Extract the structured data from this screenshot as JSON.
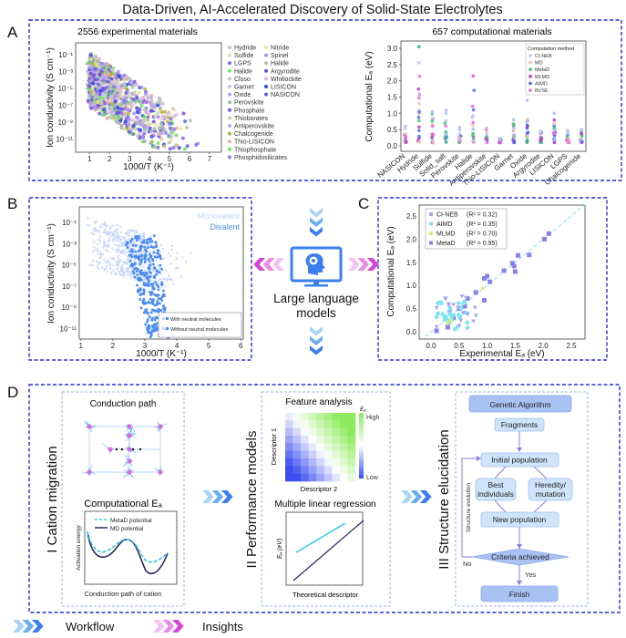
{
  "title": "Data-Driven, AI-Accelerated Discovery of Solid-State Electrolytes",
  "panels": {
    "A": {
      "label": "A",
      "left": {
        "title": "2556 experimental materials",
        "xlabel": "1000/T (K⁻¹)",
        "ylabel": "Ion conductivity (S cm⁻¹)",
        "xticks": [
          "1",
          "2",
          "3",
          "4",
          "5",
          "6",
          "7"
        ],
        "yticks": [
          "10⁻¹",
          "10⁻³",
          "10⁻⁵",
          "10⁻⁷",
          "10⁻⁹",
          "10⁻¹¹"
        ],
        "legend_col1": [
          {
            "name": "Hydride",
            "color": "#b9c9cf"
          },
          {
            "name": "Sulfide",
            "color": "#e6dcb8"
          },
          {
            "name": "LGPS",
            "color": "#8c5ff0"
          },
          {
            "name": "Halide",
            "color": "#6ee85a"
          },
          {
            "name": "Closo",
            "color": "#c6cbc0"
          },
          {
            "name": "Garnet",
            "color": "#d9b8ee"
          },
          {
            "name": "Oxide",
            "color": "#b89af0"
          },
          {
            "name": "Perovskite",
            "color": "#9cbf9c"
          },
          {
            "name": "Phosphate",
            "color": "#7a4ef0"
          },
          {
            "name": "Thioborates",
            "color": "#c8d0b0"
          },
          {
            "name": "Antiperovskite",
            "color": "#b7a0ee"
          },
          {
            "name": "Chalcogenide",
            "color": "#b5b040"
          },
          {
            "name": "Thio-LISICON",
            "color": "#e8b8a0"
          },
          {
            "name": "Thiophosphate",
            "color": "#66e860"
          },
          {
            "name": "Phosphidosilicates",
            "color": "#8c80f0"
          }
        ],
        "legend_col2": [
          {
            "name": "Nitride",
            "color": "#e0e890"
          },
          {
            "name": "Spinel",
            "color": "#a890f0"
          },
          {
            "name": "Halide",
            "color": "#b8c0a8"
          },
          {
            "name": "Argyrodite",
            "color": "#7050e8"
          },
          {
            "name": "Whitlockite",
            "color": "#e0b0ee"
          },
          {
            "name": "LISICON",
            "color": "#2f48e0"
          },
          {
            "name": "NASICON",
            "color": "#5a60e8"
          }
        ]
      },
      "right": {
        "title": "657 computational materials",
        "ylabel": "Computational Eₐ (eV)",
        "yticks": [
          "0.0",
          "0.5",
          "1.0",
          "1.5",
          "2.0",
          "2.5",
          "3.0"
        ],
        "categories": [
          "NASICON",
          "Hydride",
          "Sulfide",
          "Solid_salt",
          "Perovskite",
          "Halide",
          "Antiperovskite",
          "Thio-LISICON",
          "Garnet",
          "Oxide",
          "Argyrodite",
          "LISICON",
          "LGPS",
          "Chalcogenide"
        ],
        "legend_title": "Computation method",
        "legend": [
          {
            "name": "CI-NEB",
            "color": "#b8c4f4",
            "marker": "circle"
          },
          {
            "name": "MD",
            "color": "#f4c0a8",
            "marker": "square"
          },
          {
            "name": "MetaD",
            "color": "#3cc878",
            "marker": "triangle"
          },
          {
            "name": "MLMD",
            "color": "#c030d8",
            "marker": "diamond"
          },
          {
            "name": "AIMD",
            "color": "#4a6cf0",
            "marker": "star"
          },
          {
            "name": "BVSE",
            "color": "#f060e0",
            "marker": "hexagon"
          }
        ]
      }
    },
    "B": {
      "label": "B",
      "xlabel": "1000/T (K⁻¹)",
      "ylabel": "Ion conductivity (S cm⁻¹)",
      "xticks": [
        "1",
        "2",
        "3",
        "4",
        "5",
        "6"
      ],
      "yticks": [
        "10⁻¹",
        "10⁻³",
        "10⁻⁵",
        "10⁻⁷",
        "10⁻⁹",
        "10⁻¹¹"
      ],
      "series_labels": [
        {
          "name": "Monovalent",
          "color": "#c4d4fa"
        },
        {
          "name": "Divalent",
          "color": "#4a8cf2"
        }
      ],
      "legend": [
        "With neutral molecules",
        "Without neutral molecules"
      ]
    },
    "center": {
      "label": "Large language models",
      "icon": "monitor-brain-icon"
    },
    "C": {
      "label": "C",
      "xlabel": "Experimental Eₐ (eV)",
      "ylabel": "Computational Eₐ (eV)",
      "ticks": [
        "0.0",
        "0.5",
        "1.0",
        "1.5",
        "2.0",
        "2.5"
      ],
      "legend": [
        {
          "name": "CI-NEB",
          "r2": "(R² = 0.32)",
          "color": "#a8a8f4",
          "marker": "triangle-down"
        },
        {
          "name": "AIMD",
          "r2": "(R² = 0.35)",
          "color": "#7ee4f0",
          "marker": "circle"
        },
        {
          "name": "MLMD",
          "r2": "(R² = 0.70)",
          "color": "#e8e870",
          "marker": "triangle"
        },
        {
          "name": "MetaD",
          "r2": "(R² = 0.95)",
          "color": "#8a80ec",
          "marker": "square"
        }
      ]
    },
    "D": {
      "label": "D",
      "I": {
        "heading": "I Cation migration",
        "conduction_title": "Conduction path",
        "ea_title": "Computational Eₐ",
        "legend": [
          "MetaD potential",
          "MD potential"
        ],
        "ylabel": "Activation energy",
        "xlabel": "Conduction path of cation"
      },
      "II": {
        "heading": "II Performance models",
        "feature_title": "Feature analysis",
        "ylabel": "Descriptor 1",
        "xlabel": "Descriptor 2",
        "colorbar_title": "Eₐ",
        "high": "High",
        "low": "Low",
        "mlr_title": "Multiple linear regression",
        "mlr_ylabel": "Eₐ (eV)",
        "mlr_xlabel": "Theoretical descriptor"
      },
      "III": {
        "heading": "III Structure elucidation",
        "ga": "Genetic Algorithm",
        "fragments": "Fragments",
        "initial": "Initial population",
        "best": [
          "Best",
          "individuals"
        ],
        "heredity": [
          "Heredity/",
          "mutation"
        ],
        "new": "New population",
        "criteria": "Criteria achieved",
        "evolution": "Structure evolution",
        "no": "No",
        "yes": "Yes",
        "finish": "Finish"
      }
    }
  },
  "footer": {
    "workflow": "Workflow",
    "insights": "Insights"
  },
  "colors": {
    "frame": "#2b2bdc",
    "workflow": "#4a8cf2",
    "insights": "#e060e0"
  }
}
